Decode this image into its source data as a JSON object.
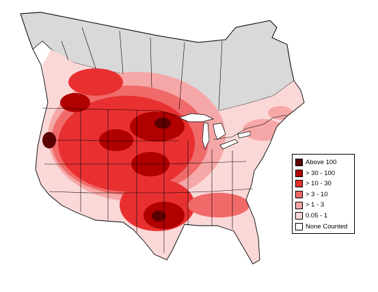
{
  "legend": {
    "items": [
      {
        "label": "Above 100",
        "color": "#5c0000"
      },
      {
        "label": "> 30 - 100",
        "color": "#b00000"
      },
      {
        "label": "> 10 - 30",
        "color": "#e83030"
      },
      {
        "label": "> 3 - 10",
        "color": "#f06a6a"
      },
      {
        "label": "> 1 - 3",
        "color": "#f6a7a7"
      },
      {
        "label": "0.05 - 1",
        "color": "#fbd8d8"
      },
      {
        "label": "None Counted",
        "color": "#ffffff"
      }
    ]
  },
  "map": {
    "no_data_color": "#d9d9d9",
    "border_color": "#000000"
  }
}
